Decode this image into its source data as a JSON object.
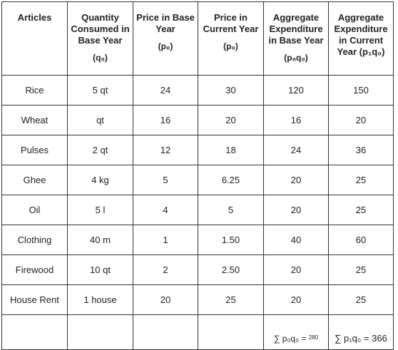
{
  "headers": {
    "articles": "Articles",
    "qty": "Quantity Consumed in Base Year",
    "qty_sym": "(q₀)",
    "price_base": "Price in Base Year",
    "price_base_sym": "(p₀)",
    "price_current": "Price in Current Year",
    "price_current_sym": "(p₀)",
    "agg_base": "Aggregate Expenditure in Base Year",
    "agg_base_sym": "(p₀q₀)",
    "agg_current": "Aggregate Expenditure in Current Year (p₁q₀)"
  },
  "rows": [
    {
      "article": "Rice",
      "qty": "5 qt",
      "p0": "24",
      "p1": "30",
      "p0q0": "120",
      "p1q0": "150"
    },
    {
      "article": "Wheat",
      "qty": "qt",
      "p0": "16",
      "p1": "20",
      "p0q0": "16",
      "p1q0": "20"
    },
    {
      "article": "Pulses",
      "qty": "2 qt",
      "p0": "12",
      "p1": "18",
      "p0q0": "24",
      "p1q0": "36"
    },
    {
      "article": "Ghee",
      "qty": "4 kg",
      "p0": "5",
      "p1": "6.25",
      "p0q0": "20",
      "p1q0": "25"
    },
    {
      "article": "Oil",
      "qty": "5 l",
      "p0": "4",
      "p1": "5",
      "p0q0": "20",
      "p1q0": "25"
    },
    {
      "article": "Clothing",
      "qty": "40 m",
      "p0": "1",
      "p1": "1.50",
      "p0q0": "40",
      "p1q0": "60"
    },
    {
      "article": "Firewood",
      "qty": "10 qt",
      "p0": "2",
      "p1": "2.50",
      "p0q0": "20",
      "p1q0": "25"
    },
    {
      "article": "House Rent",
      "qty": "1 house",
      "p0": "20",
      "p1": "25",
      "p0q0": "20",
      "p1q0": "25"
    }
  ],
  "totals": {
    "base_label": "∑ p₀q₀ =",
    "base_value": "280",
    "current": "∑ p₁q₀ = 366"
  }
}
